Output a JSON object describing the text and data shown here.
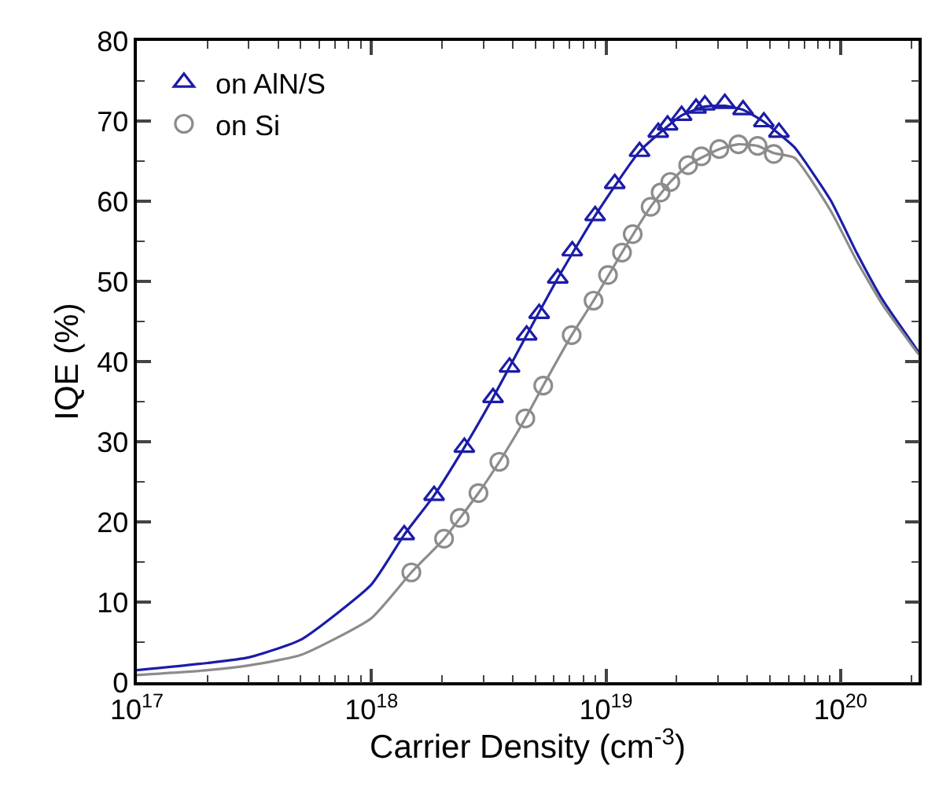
{
  "chart_data": {
    "type": "scatter",
    "xlabel": "Carrier Density (cm$^{-3}$)",
    "ylabel": "IQE (%)",
    "log": "x",
    "legend": "top left",
    "xlim": [
      1e+17,
      2.15e+20
    ],
    "xticks": [
      {
        "value": 1e+17,
        "label": "10$^{17}$"
      },
      {
        "value": 1e+18,
        "label": "10$^{18}$"
      },
      {
        "value": 1e+19,
        "label": "10$^{19}$"
      },
      {
        "value": 1e+20,
        "label": "10$^{20}$"
      }
    ],
    "ylim": [
      0,
      80
    ],
    "yticks": [
      0,
      10,
      20,
      30,
      40,
      50,
      60,
      70,
      80
    ],
    "series": [
      {
        "name": "on AlN/S",
        "marker": "triangle",
        "color": "#1c1ca8",
        "x": [
          1.38e+18,
          1.85e+18,
          2.49e+18,
          3.3e+18,
          3.88e+18,
          4.59e+18,
          5.19e+18,
          6.23e+18,
          7.18e+18,
          8.99e+18,
          1.09e+19,
          1.39e+19,
          1.67e+19,
          1.83e+19,
          2.1e+19,
          2.42e+19,
          2.64e+19,
          3.21e+19,
          3.84e+19,
          4.71e+19,
          5.46e+19
        ],
        "values": [
          18.4,
          23.3,
          29.3,
          35.5,
          39.3,
          43.3,
          46.0,
          50.4,
          53.8,
          58.2,
          62.2,
          66.2,
          68.6,
          69.5,
          70.7,
          71.6,
          72.0,
          72.2,
          71.4,
          69.9,
          68.6
        ]
      },
      {
        "name": "on Si",
        "marker": "circle",
        "color": "#8c8c8c",
        "x": [
          1.48e+18,
          2.04e+18,
          2.38e+18,
          2.86e+18,
          3.51e+18,
          4.53e+18,
          5.4e+18,
          7.14e+18,
          8.85e+18,
          1.02e+19,
          1.17e+19,
          1.3e+19,
          1.55e+19,
          1.71e+19,
          1.88e+19,
          2.24e+19,
          2.55e+19,
          3.04e+19,
          3.67e+19,
          4.43e+19,
          5.19e+19
        ],
        "values": [
          13.7,
          17.9,
          20.5,
          23.6,
          27.5,
          32.9,
          37.0,
          43.3,
          47.6,
          50.8,
          53.6,
          55.9,
          59.3,
          61.1,
          62.4,
          64.5,
          65.6,
          66.5,
          67.1,
          66.9,
          65.9
        ]
      },
      {
        "type": "line",
        "marker": "none",
        "color": "#1c1ca8",
        "x": [
          1e+17,
          2e+17,
          3e+17,
          5e+17,
          1e+18,
          1.38e+18,
          1.85e+18,
          2.49e+18,
          3.3e+18,
          4.59e+18,
          6.23e+18,
          8.99e+18,
          1.39e+19,
          2.1e+19,
          2.64e+19,
          3.21e+19,
          3.84e+19,
          4.71e+19,
          5.46e+19,
          6.37e+19,
          9.08e+19,
          1.17e+20,
          1.51e+20,
          2.15e+20
        ],
        "values": [
          1.5,
          2.4,
          3.1,
          5.3,
          12.2,
          18.4,
          23.3,
          29.3,
          35.5,
          43.3,
          50.4,
          58.2,
          66.2,
          70.7,
          71.8,
          71.9,
          71.4,
          69.9,
          68.4,
          66.7,
          60.1,
          53.6,
          47.7,
          41.2
        ]
      },
      {
        "type": "line",
        "marker": "none",
        "color": "#8c8c8c",
        "x": [
          1e+17,
          2e+17,
          3e+17,
          5e+17,
          1e+18,
          1.48e+18,
          2.04e+18,
          2.86e+18,
          3.51e+18,
          4.53e+18,
          5.4e+18,
          7.14e+18,
          8.85e+18,
          1.17e+19,
          1.55e+19,
          1.88e+19,
          2.24e+19,
          3.04e+19,
          3.67e+19,
          4.43e+19,
          5.19e+19,
          6.37e+19,
          9.08e+19,
          1.17e+20,
          1.51e+20,
          2.15e+20
        ],
        "values": [
          0.9,
          1.5,
          2.1,
          3.4,
          8.0,
          13.7,
          17.9,
          23.6,
          27.5,
          32.9,
          37.0,
          43.3,
          47.6,
          53.6,
          59.3,
          62.4,
          64.5,
          66.5,
          67.1,
          66.9,
          66.0,
          65.4,
          58.8,
          52.6,
          47.1,
          40.9
        ]
      }
    ]
  }
}
